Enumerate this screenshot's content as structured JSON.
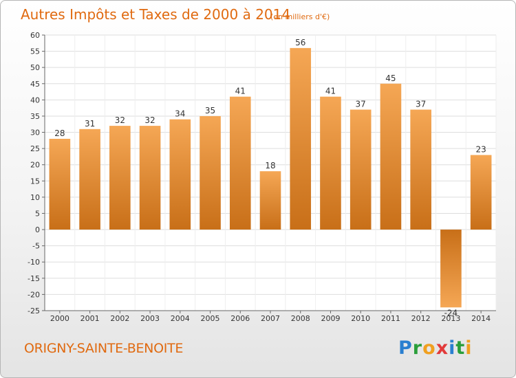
{
  "title": "Autres Impôts et Taxes de 2000 à 2014",
  "unit_note": "(en milliers d'€)",
  "commune": "ORIGNY-SAINTE-BENOITE",
  "brand": {
    "letters": [
      "P",
      "r",
      "o",
      "x",
      "i",
      "t",
      "i"
    ],
    "colors": [
      "#2a7fd0",
      "#2a9e3a",
      "#f0a020",
      "#e23a3a",
      "#2a7fd0",
      "#2a9e3a",
      "#f0a020"
    ]
  },
  "colors": {
    "bar_light": "#f5a755",
    "bar_dark": "#c86f18",
    "accent_text": "#e06a10",
    "grid": "#dddddd"
  },
  "chart_data": {
    "type": "bar",
    "title": "Autres Impôts et Taxes de 2000 à 2014",
    "subtitle": "(en milliers d'€)",
    "xlabel": "",
    "ylabel": "",
    "categories": [
      "2000",
      "2001",
      "2002",
      "2003",
      "2004",
      "2005",
      "2006",
      "2007",
      "2008",
      "2009",
      "2010",
      "2011",
      "2012",
      "2013",
      "2014"
    ],
    "values": [
      28,
      31,
      32,
      32,
      34,
      35,
      41,
      18,
      56,
      41,
      37,
      45,
      37,
      -24,
      23
    ],
    "ylim": [
      -25,
      60
    ],
    "yticks": [
      60,
      55,
      50,
      45,
      40,
      35,
      30,
      25,
      20,
      15,
      10,
      5,
      0,
      -5,
      -10,
      -15,
      -20,
      -25
    ],
    "grid": true,
    "legend": "none"
  }
}
